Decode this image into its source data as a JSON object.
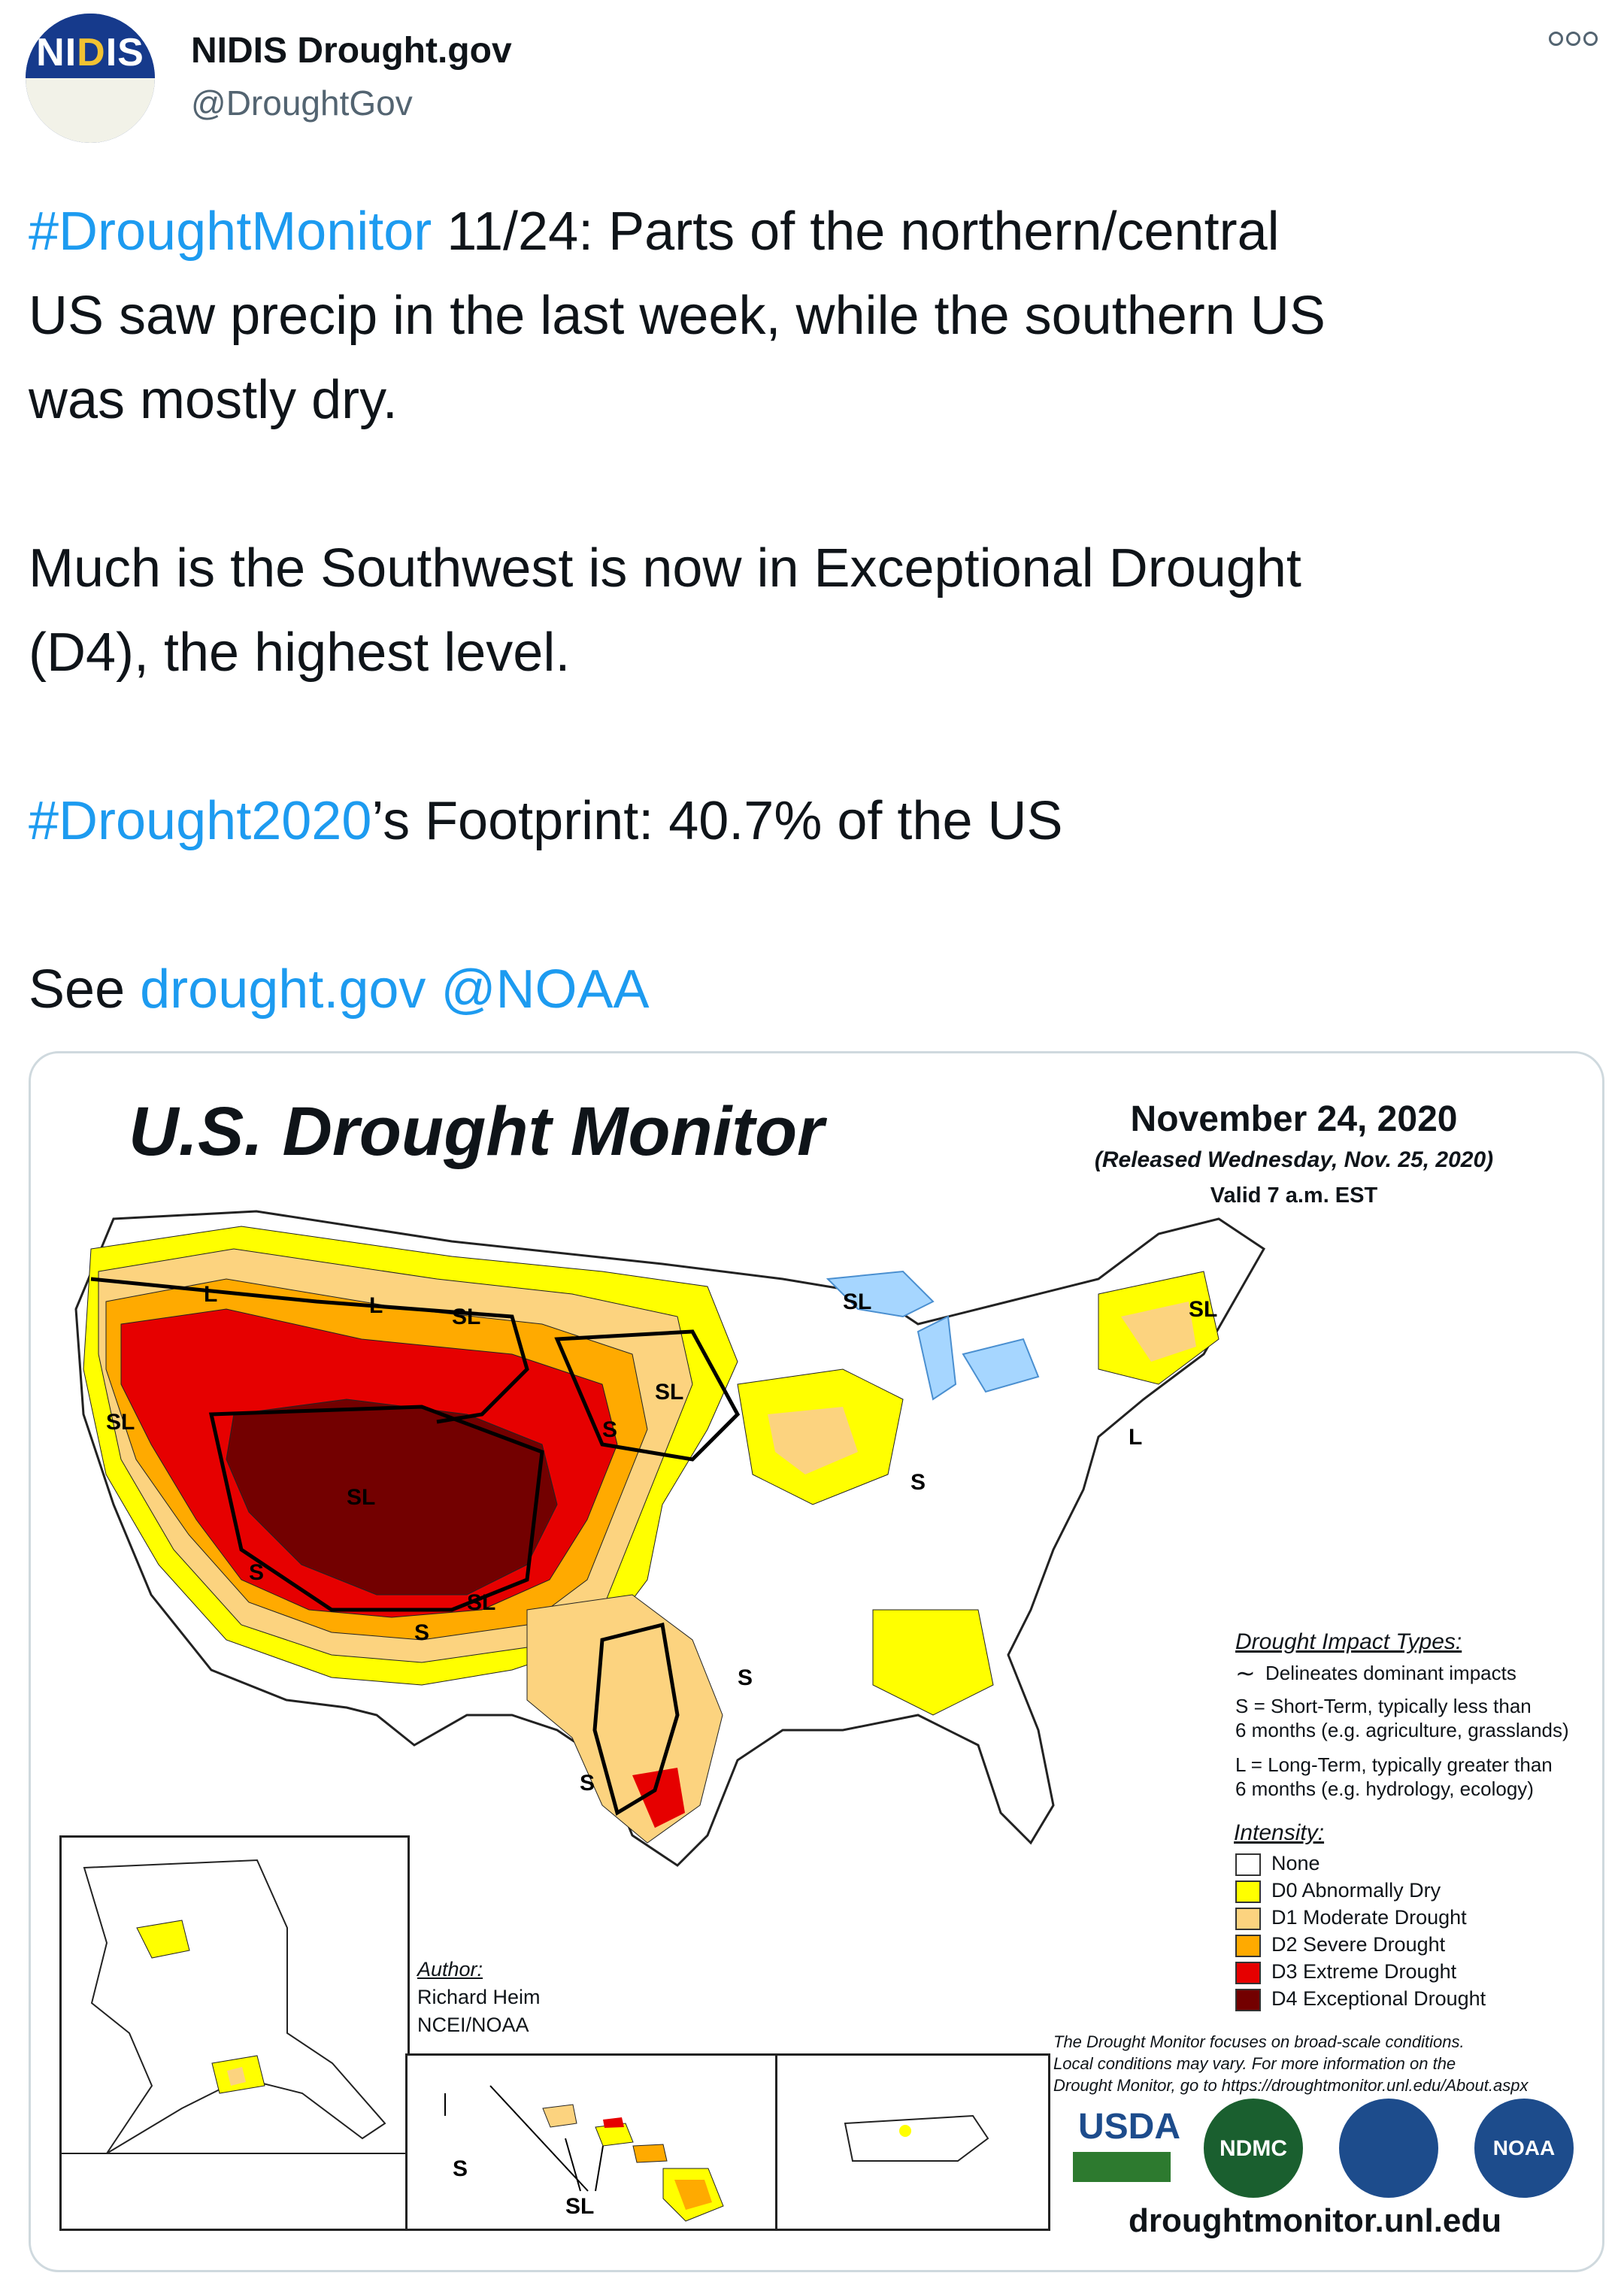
{
  "profile": {
    "avatar_text_left": "NI",
    "avatar_text_highlight": "D",
    "avatar_text_right": "IS",
    "name": "NIDIS Drought.gov",
    "handle": "@DroughtGov"
  },
  "tweet": {
    "line1_hashtag": "#DroughtMonitor",
    "line1_rest": " 11/24: Parts of the northern/central",
    "line2": "US saw precip in the last week, while the southern US",
    "line3": "was mostly dry.",
    "line4": "Much is the Southwest is now in Exceptional Drought",
    "line5": "(D4), the highest level.",
    "line6_hashtag": "#Drought2020",
    "line6_rest": "’s Footprint: 40.7% of the US",
    "line7_see": "See ",
    "line7_link1": "drought.gov",
    "line7_link2": "@NOAA"
  },
  "map": {
    "title": "U.S. Drought Monitor",
    "date": "November 24, 2020",
    "released": "(Released Wednesday, Nov. 25, 2020)",
    "valid": "Valid 7 a.m. EST",
    "impact_heading": "Drought Impact Types:",
    "impact_delineates": "Delineates dominant impacts",
    "impact_s_1": "S = Short-Term, typically less than",
    "impact_s_2": "6 months (e.g. agriculture, grasslands)",
    "impact_l_1": "L = Long-Term, typically greater than",
    "impact_l_2": "6 months (e.g. hydrology, ecology)",
    "intensity_heading": "Intensity:",
    "intensity": [
      {
        "label": "None",
        "color": "#ffffff"
      },
      {
        "label": "D0 Abnormally Dry",
        "color": "#ffff00"
      },
      {
        "label": "D1 Moderate Drought",
        "color": "#fcd37f"
      },
      {
        "label": "D2 Severe Drought",
        "color": "#ffaa00"
      },
      {
        "label": "D3 Extreme Drought",
        "color": "#e60000"
      },
      {
        "label": "D4 Exceptional Drought",
        "color": "#730000"
      }
    ],
    "author_heading": "Author:",
    "author_name": "Richard Heim",
    "author_org": "NCEI/NOAA",
    "disclaimer_1": "The Drought Monitor focuses on broad-scale conditions.",
    "disclaimer_2": "Local conditions may vary. For more information on the",
    "disclaimer_3": "Drought Monitor, go to https://droughtmonitor.unl.edu/About.aspx",
    "url": "droughtmonitor.unl.edu",
    "logo_usda": "USDA",
    "logo_ndmc": "NDMC",
    "logo_noaa": "NOAA",
    "map_labels": {
      "l_nw": "L",
      "l_mt": "L",
      "sl_mt": "SL",
      "sl_mi": "SL",
      "sl_me": "SL",
      "sl_ne": "SL",
      "s_ne": "S",
      "sl_ca": "SL",
      "sl_ut": "SL",
      "s_az": "S",
      "s_il": "S",
      "l_pa": "L",
      "sl_nm": "SL",
      "s_nm": "S",
      "s_tx": "S",
      "s_stx": "S",
      "s_hi": "S",
      "sl_hi": "SL"
    }
  }
}
